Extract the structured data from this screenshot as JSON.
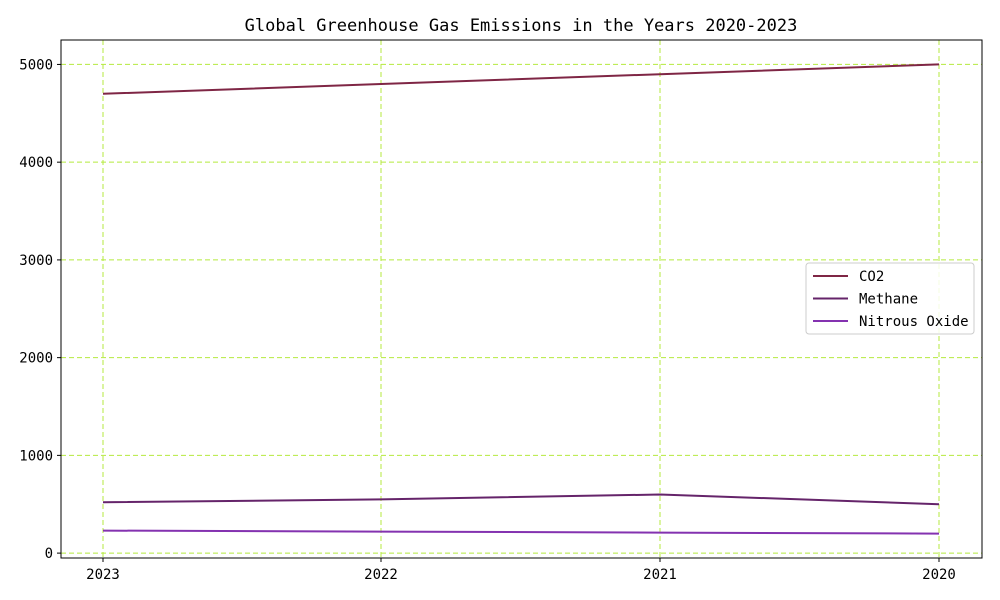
{
  "chart_data": {
    "type": "line",
    "title": "Global Greenhouse Gas Emissions in the Years 2020-2023",
    "xlabel": "",
    "ylabel": "",
    "categories": [
      "2023",
      "2022",
      "2021",
      "2020"
    ],
    "series": [
      {
        "name": "CO2",
        "values": [
          4700,
          4800,
          4900,
          5000
        ],
        "color": "#7f2645"
      },
      {
        "name": "Methane",
        "values": [
          520,
          550,
          600,
          500
        ],
        "color": "#65246a"
      },
      {
        "name": "Nitrous Oxide",
        "values": [
          230,
          220,
          210,
          200
        ],
        "color": "#8432b0"
      }
    ],
    "ylim": [
      -50,
      5250
    ],
    "yticks": [
      0,
      1000,
      2000,
      3000,
      4000,
      5000
    ],
    "grid": true,
    "grid_color": "#b5ea3f",
    "legend_position": "center-right"
  }
}
